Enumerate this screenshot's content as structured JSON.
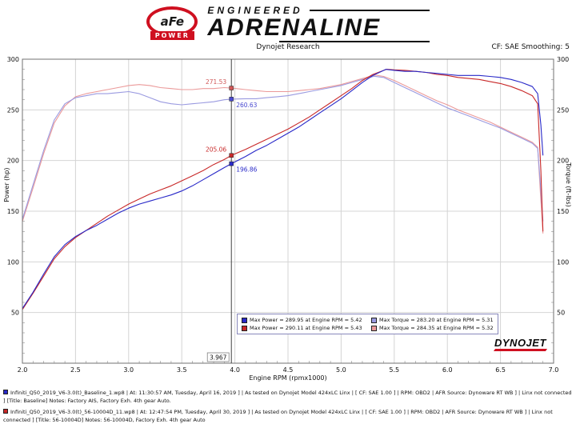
{
  "header": {
    "logo_afe": "aFe",
    "logo_power": "POWER",
    "brand_top": "ENGINEERED",
    "brand_main": "ADRENALINE",
    "brand_color": "#cf1020"
  },
  "subheader": {
    "title": "Dynojet Research",
    "smoothing": "CF: SAE Smoothing: 5"
  },
  "watermark": {
    "text": "DYNOJET",
    "swoosh_color": "#cf1020"
  },
  "chart_data": {
    "type": "line",
    "title": "Dynojet Research",
    "xlabel": "Engine RPM (rpmx1000)",
    "ylabel_left": "Power (hp)",
    "ylabel_right": "Torque (ft-lbs)",
    "xlim": [
      2.0,
      7.0
    ],
    "ylim": [
      0,
      300
    ],
    "xticks": [
      2.0,
      2.5,
      3.0,
      3.5,
      4.0,
      4.5,
      5.0,
      5.5,
      6.0,
      6.5,
      7.0
    ],
    "yticks": [
      50,
      100,
      150,
      200,
      250,
      300
    ],
    "grid": true,
    "grid_color": "#d4d4d4",
    "border_color": "#707070",
    "cursor": {
      "x": 3.967,
      "label": "3.967",
      "line_color": "#404040",
      "points": [
        {
          "value": 271.53,
          "label": "271.53",
          "color": "#d05858",
          "side": "left"
        },
        {
          "value": 260.63,
          "label": "260.63",
          "color": "#4a4ad0",
          "side": "right"
        },
        {
          "value": 205.06,
          "label": "205.06",
          "color": "#c82a2a",
          "side": "left"
        },
        {
          "value": 196.86,
          "label": "196.86",
          "color": "#2a2ac8",
          "side": "right"
        }
      ]
    },
    "series": [
      {
        "name": "56-10004D Torque",
        "axis": "right",
        "color": "#eb9a9a",
        "points": [
          [
            2.0,
            140
          ],
          [
            2.1,
            173
          ],
          [
            2.2,
            207
          ],
          [
            2.3,
            237
          ],
          [
            2.4,
            254
          ],
          [
            2.5,
            263
          ],
          [
            2.6,
            266
          ],
          [
            2.7,
            268
          ],
          [
            2.8,
            270
          ],
          [
            2.9,
            272
          ],
          [
            3.0,
            274
          ],
          [
            3.1,
            275
          ],
          [
            3.2,
            274
          ],
          [
            3.3,
            272
          ],
          [
            3.4,
            271
          ],
          [
            3.5,
            270
          ],
          [
            3.6,
            270
          ],
          [
            3.7,
            271
          ],
          [
            3.8,
            271
          ],
          [
            3.9,
            272
          ],
          [
            3.967,
            271.53
          ],
          [
            4.1,
            270
          ],
          [
            4.2,
            269
          ],
          [
            4.3,
            268
          ],
          [
            4.4,
            268
          ],
          [
            4.5,
            268
          ],
          [
            4.6,
            269
          ],
          [
            4.7,
            270
          ],
          [
            4.8,
            271
          ],
          [
            4.9,
            273
          ],
          [
            5.0,
            275
          ],
          [
            5.1,
            278
          ],
          [
            5.2,
            281
          ],
          [
            5.32,
            284.35
          ],
          [
            5.4,
            283
          ],
          [
            5.5,
            279
          ],
          [
            5.6,
            274
          ],
          [
            5.7,
            269
          ],
          [
            5.8,
            264
          ],
          [
            5.9,
            259
          ],
          [
            6.0,
            255
          ],
          [
            6.1,
            250
          ],
          [
            6.2,
            246
          ],
          [
            6.3,
            242
          ],
          [
            6.4,
            238
          ],
          [
            6.5,
            233
          ],
          [
            6.6,
            228
          ],
          [
            6.7,
            223
          ],
          [
            6.8,
            218
          ],
          [
            6.85,
            213
          ],
          [
            6.88,
            160
          ],
          [
            6.9,
            128
          ]
        ]
      },
      {
        "name": "Baseline Torque",
        "axis": "right",
        "color": "#9a9ae0",
        "points": [
          [
            2.0,
            142
          ],
          [
            2.1,
            176
          ],
          [
            2.2,
            210
          ],
          [
            2.3,
            240
          ],
          [
            2.4,
            256
          ],
          [
            2.5,
            262
          ],
          [
            2.6,
            264
          ],
          [
            2.7,
            266
          ],
          [
            2.8,
            266
          ],
          [
            2.9,
            267
          ],
          [
            3.0,
            268
          ],
          [
            3.1,
            266
          ],
          [
            3.2,
            262
          ],
          [
            3.3,
            258
          ],
          [
            3.4,
            256
          ],
          [
            3.5,
            255
          ],
          [
            3.6,
            256
          ],
          [
            3.7,
            257
          ],
          [
            3.8,
            258
          ],
          [
            3.9,
            260
          ],
          [
            3.967,
            260.63
          ],
          [
            4.1,
            261
          ],
          [
            4.2,
            261
          ],
          [
            4.3,
            262
          ],
          [
            4.4,
            263
          ],
          [
            4.5,
            264
          ],
          [
            4.6,
            266
          ],
          [
            4.7,
            268
          ],
          [
            4.8,
            270
          ],
          [
            4.9,
            272
          ],
          [
            5.0,
            274
          ],
          [
            5.1,
            277
          ],
          [
            5.2,
            280
          ],
          [
            5.31,
            283.2
          ],
          [
            5.4,
            282
          ],
          [
            5.5,
            277
          ],
          [
            5.6,
            272
          ],
          [
            5.7,
            267
          ],
          [
            5.8,
            262
          ],
          [
            5.9,
            257
          ],
          [
            6.0,
            252
          ],
          [
            6.1,
            248
          ],
          [
            6.2,
            244
          ],
          [
            6.3,
            240
          ],
          [
            6.4,
            236
          ],
          [
            6.5,
            232
          ],
          [
            6.6,
            227
          ],
          [
            6.7,
            222
          ],
          [
            6.8,
            217
          ],
          [
            6.85,
            212
          ],
          [
            6.88,
            170
          ],
          [
            6.9,
            140
          ]
        ]
      },
      {
        "name": "56-10004D Power",
        "axis": "left",
        "color": "#c82828",
        "points": [
          [
            2.0,
            53
          ],
          [
            2.1,
            69
          ],
          [
            2.2,
            86
          ],
          [
            2.3,
            103
          ],
          [
            2.4,
            115
          ],
          [
            2.5,
            124
          ],
          [
            2.6,
            131
          ],
          [
            2.7,
            138
          ],
          [
            2.8,
            145
          ],
          [
            2.9,
            151
          ],
          [
            3.0,
            157
          ],
          [
            3.1,
            162
          ],
          [
            3.2,
            167
          ],
          [
            3.3,
            171
          ],
          [
            3.4,
            175
          ],
          [
            3.5,
            180
          ],
          [
            3.6,
            185
          ],
          [
            3.7,
            190
          ],
          [
            3.8,
            196
          ],
          [
            3.9,
            201
          ],
          [
            3.967,
            205.06
          ],
          [
            4.1,
            211
          ],
          [
            4.2,
            216
          ],
          [
            4.3,
            221
          ],
          [
            4.4,
            226
          ],
          [
            4.5,
            231
          ],
          [
            4.6,
            237
          ],
          [
            4.7,
            243
          ],
          [
            4.8,
            250
          ],
          [
            4.9,
            257
          ],
          [
            5.0,
            264
          ],
          [
            5.1,
            271
          ],
          [
            5.2,
            279
          ],
          [
            5.3,
            285
          ],
          [
            5.43,
            290.11
          ],
          [
            5.5,
            289.5
          ],
          [
            5.6,
            289
          ],
          [
            5.7,
            288
          ],
          [
            5.8,
            287
          ],
          [
            5.9,
            285
          ],
          [
            6.0,
            284
          ],
          [
            6.1,
            282
          ],
          [
            6.2,
            281
          ],
          [
            6.3,
            280
          ],
          [
            6.4,
            278
          ],
          [
            6.5,
            276
          ],
          [
            6.6,
            273
          ],
          [
            6.7,
            269
          ],
          [
            6.8,
            264
          ],
          [
            6.85,
            256
          ],
          [
            6.88,
            190
          ],
          [
            6.9,
            130
          ]
        ]
      },
      {
        "name": "Baseline Power",
        "axis": "left",
        "color": "#2828c8",
        "points": [
          [
            2.0,
            54
          ],
          [
            2.1,
            70
          ],
          [
            2.2,
            88
          ],
          [
            2.3,
            105
          ],
          [
            2.4,
            117
          ],
          [
            2.5,
            125
          ],
          [
            2.6,
            131
          ],
          [
            2.7,
            136
          ],
          [
            2.8,
            142
          ],
          [
            2.9,
            148
          ],
          [
            3.0,
            153
          ],
          [
            3.1,
            157
          ],
          [
            3.2,
            160
          ],
          [
            3.3,
            163
          ],
          [
            3.4,
            166
          ],
          [
            3.5,
            170
          ],
          [
            3.6,
            175
          ],
          [
            3.7,
            181
          ],
          [
            3.8,
            187
          ],
          [
            3.9,
            193
          ],
          [
            3.967,
            196.86
          ],
          [
            4.1,
            204
          ],
          [
            4.2,
            210
          ],
          [
            4.3,
            215
          ],
          [
            4.4,
            221
          ],
          [
            4.5,
            227
          ],
          [
            4.6,
            233
          ],
          [
            4.7,
            240
          ],
          [
            4.8,
            247
          ],
          [
            4.9,
            254
          ],
          [
            5.0,
            261
          ],
          [
            5.1,
            269
          ],
          [
            5.2,
            277
          ],
          [
            5.3,
            284
          ],
          [
            5.42,
            289.95
          ],
          [
            5.5,
            289
          ],
          [
            5.6,
            288
          ],
          [
            5.7,
            288
          ],
          [
            5.8,
            287
          ],
          [
            5.9,
            286
          ],
          [
            6.0,
            285
          ],
          [
            6.1,
            284
          ],
          [
            6.2,
            284
          ],
          [
            6.3,
            284
          ],
          [
            6.4,
            283
          ],
          [
            6.5,
            282
          ],
          [
            6.6,
            280
          ],
          [
            6.7,
            277
          ],
          [
            6.8,
            273
          ],
          [
            6.85,
            266
          ],
          [
            6.88,
            235
          ],
          [
            6.9,
            205
          ]
        ]
      }
    ],
    "legend": {
      "position": "bottom-center",
      "rows": [
        {
          "items": [
            {
              "color": "#2828c8",
              "label": "Max Power = 289.95 at Engine RPM = 5.42"
            },
            {
              "color": "#9a9ae0",
              "label": "Max Torque = 283.20 at Engine RPM = 5.31"
            }
          ]
        },
        {
          "items": [
            {
              "color": "#c82828",
              "label": "Max Power = 290.11 at Engine RPM = 5.43"
            },
            {
              "color": "#eb9a9a",
              "label": "Max Torque = 284.35 at Engine RPM = 5.32"
            }
          ]
        }
      ]
    }
  },
  "footer": {
    "runs": [
      {
        "color": "#2828c8",
        "text": "Infiniti_Q50_2019_V6-3.0(t)_Baseline_1.wp8 | At: 11:30:57 AM, Tuesday, April 16, 2019 ] | As tested on Dynojet Model 424xLC Linx | [ CF: SAE 1.00 ] | RPM: OBD2 | AFR Source: Dynoware RT WB ] | Linx not connected ] [Title: Baseline]  Notes: Factory AIS, Factory Exh. 4th gear Auto."
      },
      {
        "color": "#c82828",
        "text": "Infiniti_Q50_2019_V6-3.0(t)_56-10004D_11.wp8 | At: 12:47:54 PM, Tuesday, April 30, 2019 ] | As tested on Dynojet Model 424xLC Linx | [ CF: SAE 1.00 ] | RPM: OBD2 | AFR Source: Dynoware RT WB ] | Linx not connected ] [Title: 56-10004D]  Notes: 56-10004D, Factory Exh. 4th gear Auto"
      }
    ]
  }
}
